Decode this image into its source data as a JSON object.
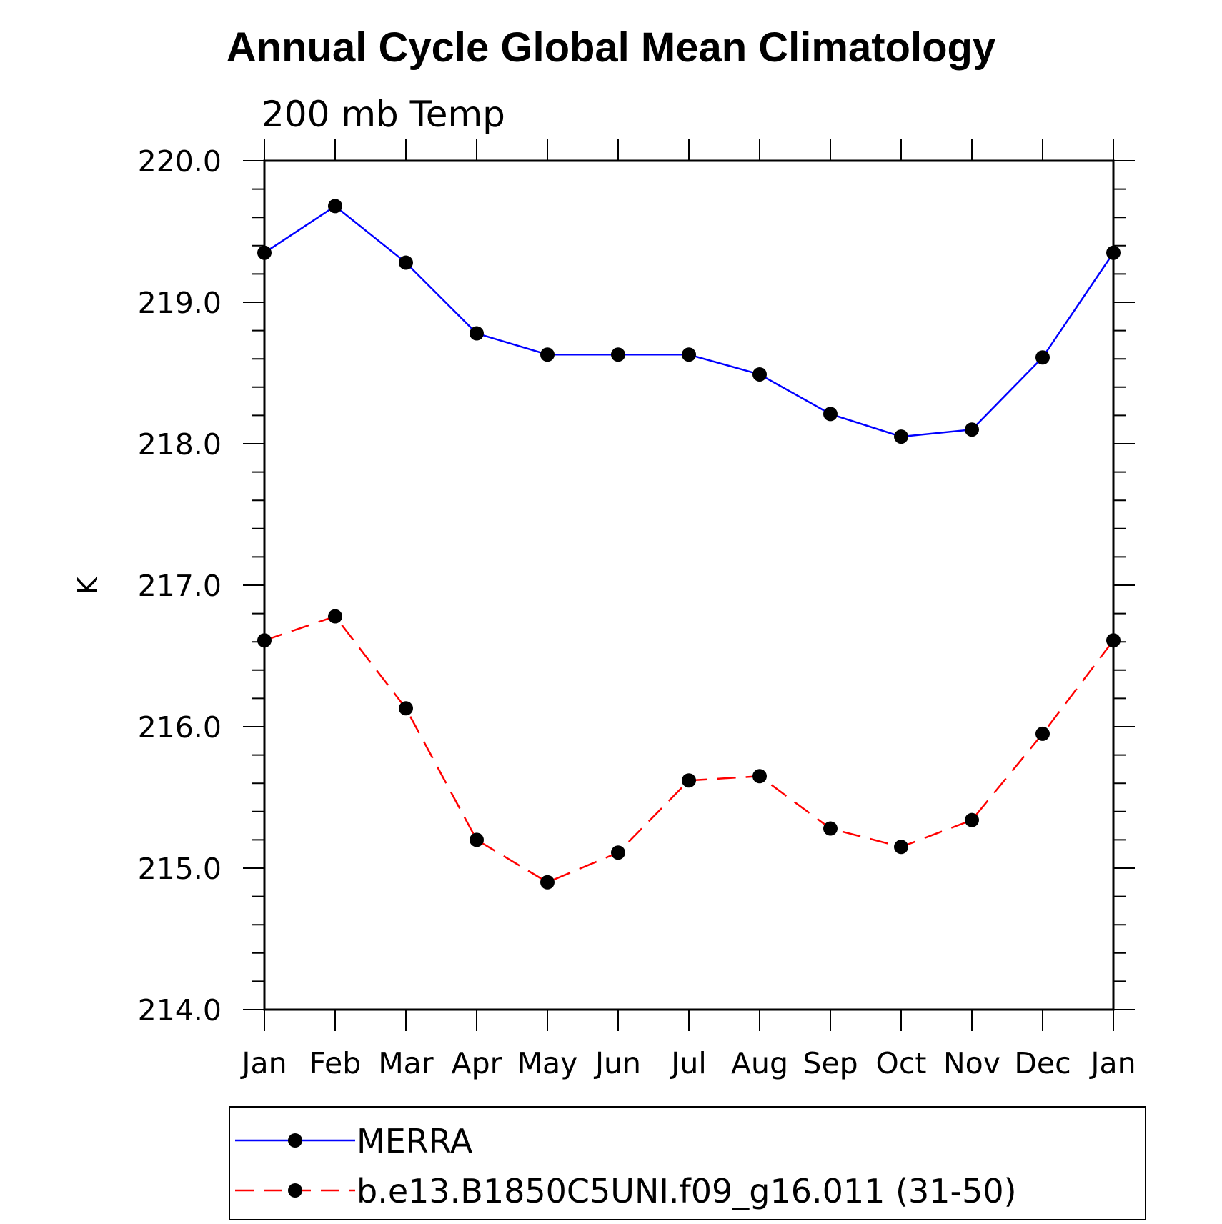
{
  "chart_data": {
    "type": "line",
    "title": "Annual Cycle Global Mean Climatology",
    "subtitle": "200 mb Temp",
    "ylabel": "K",
    "xlabel": "",
    "categories": [
      "Jan",
      "Feb",
      "Mar",
      "Apr",
      "May",
      "Jun",
      "Jul",
      "Aug",
      "Sep",
      "Oct",
      "Nov",
      "Dec",
      "Jan"
    ],
    "ylim": [
      214.0,
      220.0
    ],
    "yticks": [
      "214.0",
      "215.0",
      "216.0",
      "217.0",
      "218.0",
      "219.0",
      "220.0"
    ],
    "grid": false,
    "legend_position": "bottom",
    "series": [
      {
        "name": "MERRA",
        "color": "#0000ff",
        "line_style": "solid",
        "marker": "filled-circle",
        "values": [
          219.35,
          219.68,
          219.28,
          218.78,
          218.63,
          218.63,
          218.63,
          218.49,
          218.21,
          218.05,
          218.1,
          218.61,
          219.35
        ]
      },
      {
        "name": "b.e13.B1850C5UNI.f09_g16.011 (31-50)",
        "color": "#ff0000",
        "line_style": "dashed",
        "marker": "filled-circle",
        "values": [
          216.61,
          216.78,
          216.13,
          215.2,
          214.9,
          215.11,
          215.62,
          215.65,
          215.28,
          215.15,
          215.34,
          215.95,
          216.61
        ]
      }
    ]
  }
}
